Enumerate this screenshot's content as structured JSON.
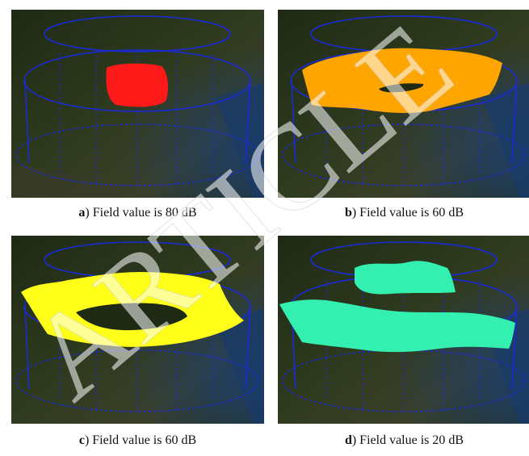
{
  "watermark": "ARTICLE",
  "panels": [
    {
      "letter": "a",
      "caption": ") Field value is 80 dB",
      "fill_color": "#ff1a1a"
    },
    {
      "letter": "b",
      "caption": ") Field value is 60 dB",
      "fill_color": "#ffa500"
    },
    {
      "letter": "c",
      "caption": ") Field value is 60 dB",
      "fill_color": "#ffff1a"
    },
    {
      "letter": "d",
      "caption": ") Field value is 20 dB",
      "fill_color": "#33f0b0"
    }
  ]
}
